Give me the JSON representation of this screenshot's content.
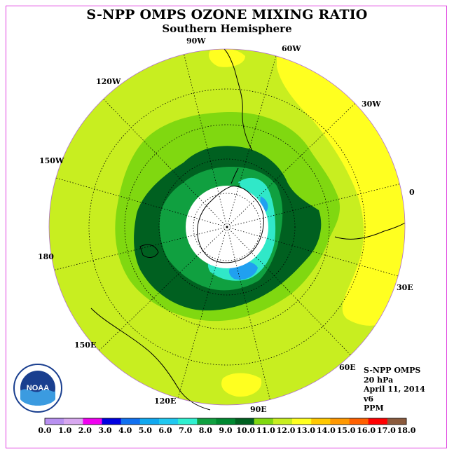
{
  "header": {
    "title": "S-NPP OMPS OZONE MIXING RATIO",
    "subtitle": "Southern Hemisphere"
  },
  "map": {
    "projection": "south polar stereographic",
    "longitude_labels": [
      "90W",
      "60W",
      "30W",
      "0",
      "30E",
      "60E",
      "90E",
      "120E",
      "150E",
      "180",
      "150W",
      "120W"
    ],
    "contour_colors": {
      "polar_mask": "#ffffff",
      "ppm_7_8": "#30e8c8",
      "ppm_6_7": "#20a0f0",
      "ppm_8_9": "#10a040",
      "ppm_9_10": "#006020",
      "ppm_10_11": "#80d810",
      "ppm_11_12": "#c8ee20",
      "ppm_12_13": "#ffff20"
    }
  },
  "info": {
    "instrument": "S-NPP OMPS",
    "level": "20 hPa",
    "date": "April 11, 2014",
    "version": "v6",
    "units": "PPM"
  },
  "logo": {
    "text": "NOAA"
  },
  "colorbar": {
    "labels": [
      "0.0",
      "1.0",
      "2.0",
      "3.0",
      "4.0",
      "5.0",
      "6.0",
      "7.0",
      "8.0",
      "9.0",
      "10.0",
      "11.0",
      "12.0",
      "13.0",
      "14.0",
      "15.0",
      "16.0",
      "17.0",
      "18.0"
    ],
    "colors": [
      "#b890f0",
      "#d8a8f0",
      "#f000f0",
      "#0000e0",
      "#1070f0",
      "#10a8f0",
      "#20c8f0",
      "#30f0d0",
      "#10a040",
      "#008830",
      "#006020",
      "#80d810",
      "#c8ee20",
      "#ffff20",
      "#ffc800",
      "#ff9800",
      "#ff6000",
      "#ff0000",
      "#8b5a3c"
    ]
  }
}
